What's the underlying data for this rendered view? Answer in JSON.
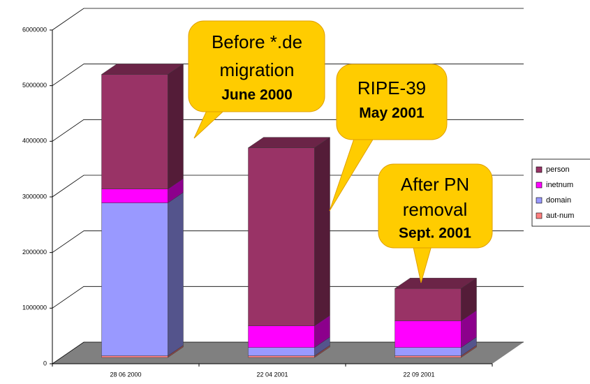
{
  "chart_data": {
    "type": "bar3d_stacked",
    "categories": [
      "28 06 2000",
      "22 04 2001",
      "22 09 2001"
    ],
    "series": [
      {
        "name": "aut-num",
        "color": "#ff8080",
        "values": [
          30000,
          30000,
          30000
        ]
      },
      {
        "name": "domain",
        "color": "#9999ff",
        "values": [
          2750000,
          150000,
          150000
        ]
      },
      {
        "name": "inetnum",
        "color": "#ff00ff",
        "values": [
          250000,
          390000,
          480000
        ]
      },
      {
        "name": "person",
        "color": "#993366",
        "values": [
          2060000,
          3200000,
          580000
        ]
      }
    ],
    "ylim": [
      0,
      6000000
    ],
    "yticks": [
      0,
      1000000,
      2000000,
      3000000,
      4000000,
      5000000,
      6000000
    ],
    "grid": true,
    "legend": "right",
    "annotations": [
      {
        "lines": [
          "Before *.de",
          "migration"
        ],
        "date": "June 2000"
      },
      {
        "lines": [
          "RIPE-39"
        ],
        "date": "May 2001"
      },
      {
        "lines": [
          "After PN",
          "removal"
        ],
        "date": "Sept. 2001"
      }
    ]
  }
}
